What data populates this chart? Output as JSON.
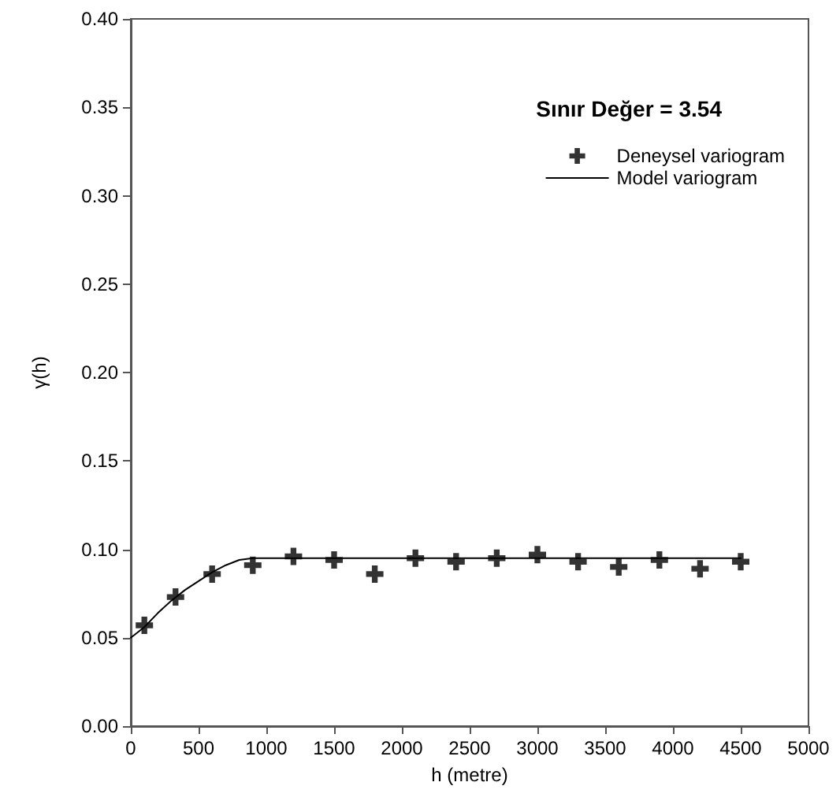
{
  "chart_data": {
    "type": "scatter",
    "xlabel": "h (metre)",
    "ylabel": "γ(h)",
    "annotations": [
      "Sınır Değer = 3.54"
    ],
    "xlim": [
      0,
      5000
    ],
    "xticks": [
      0,
      500,
      1000,
      1500,
      2000,
      2500,
      3000,
      3500,
      4000,
      4500,
      5000
    ],
    "ylim": [
      0,
      0.4
    ],
    "yticks": [
      {
        "value": 0,
        "label": "0.00"
      },
      {
        "value": 0.05,
        "label": "0.05"
      },
      {
        "value": 0.1,
        "label": "0.10"
      },
      {
        "value": 0.15,
        "label": "0.15"
      },
      {
        "value": 0.2,
        "label": "0.20"
      },
      {
        "value": 0.25,
        "label": "0.25"
      },
      {
        "value": 0.3,
        "label": "0.30"
      },
      {
        "value": 0.35,
        "label": "0.35"
      },
      {
        "value": 0.4,
        "label": "0.40"
      }
    ],
    "legend": "top right",
    "grid": false,
    "series": [
      {
        "name": "Deneysel variogram",
        "marker": "cross",
        "color": "#000000",
        "x": [
          100,
          330,
          600,
          900,
          1200,
          1500,
          1800,
          2100,
          2400,
          2700,
          3000,
          3300,
          3600,
          3900,
          4200,
          4500
        ],
        "values": [
          0.057,
          0.073,
          0.086,
          0.091,
          0.096,
          0.094,
          0.086,
          0.095,
          0.093,
          0.095,
          0.097,
          0.093,
          0.09,
          0.094,
          0.089,
          0.093
        ]
      },
      {
        "name": "Model variogram",
        "type": "line",
        "marker": "none",
        "line_style": "solid",
        "color": "#000000",
        "x": [
          0,
          100,
          200,
          300,
          400,
          500,
          600,
          700,
          800,
          900,
          4500
        ],
        "values": [
          0.05,
          0.056,
          0.064,
          0.071,
          0.077,
          0.082,
          0.087,
          0.091,
          0.094,
          0.095,
          0.095
        ]
      }
    ]
  }
}
